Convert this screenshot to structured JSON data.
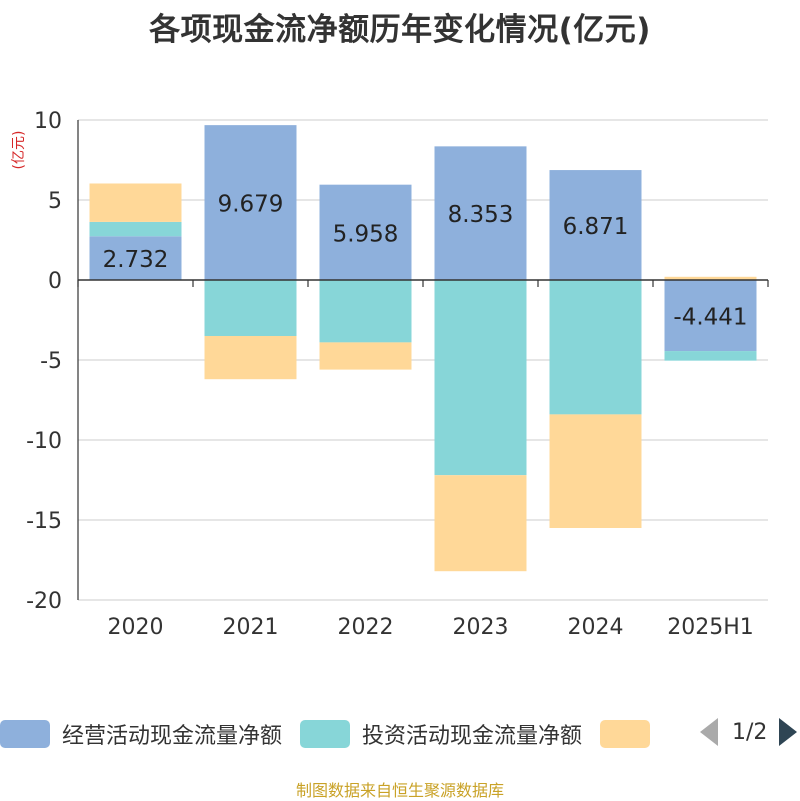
{
  "title": "各项现金流净额历年变化情况(亿元)",
  "unit_label": "(亿元)",
  "source": "制图数据来自恒生聚源数据库",
  "legend": {
    "items": [
      {
        "label": "经营活动现金流量净额",
        "color": "#8eb0dc"
      },
      {
        "label": "投资活动现金流量净额",
        "color": "#87d6d8"
      },
      {
        "label": "",
        "color": "#ffd898"
      }
    ],
    "pager_text": "1/2"
  },
  "chart_data": {
    "type": "bar",
    "stacked": true,
    "categories": [
      "2020",
      "2021",
      "2022",
      "2023",
      "2024",
      "2025H1"
    ],
    "series": [
      {
        "name": "经营活动现金流量净额",
        "color": "#8eb0dc",
        "values": [
          2.732,
          9.679,
          5.958,
          8.353,
          6.871,
          -4.441
        ]
      },
      {
        "name": "投资活动现金流量净额",
        "color": "#87d6d8",
        "values": [
          0.9,
          -3.5,
          -3.9,
          -12.2,
          -8.4,
          -0.6
        ]
      },
      {
        "name": "",
        "color": "#ffd898",
        "values": [
          2.4,
          -2.7,
          -1.7,
          -6.0,
          -7.1,
          0.2
        ]
      }
    ],
    "data_labels": [
      "2.732",
      "9.679",
      "5.958",
      "8.353",
      "6.871",
      "-4.441"
    ],
    "yticks": [
      "10",
      "5",
      "0",
      "-5",
      "-10",
      "-15",
      "-20"
    ],
    "ylim": [
      -20,
      10
    ],
    "grid": true
  }
}
